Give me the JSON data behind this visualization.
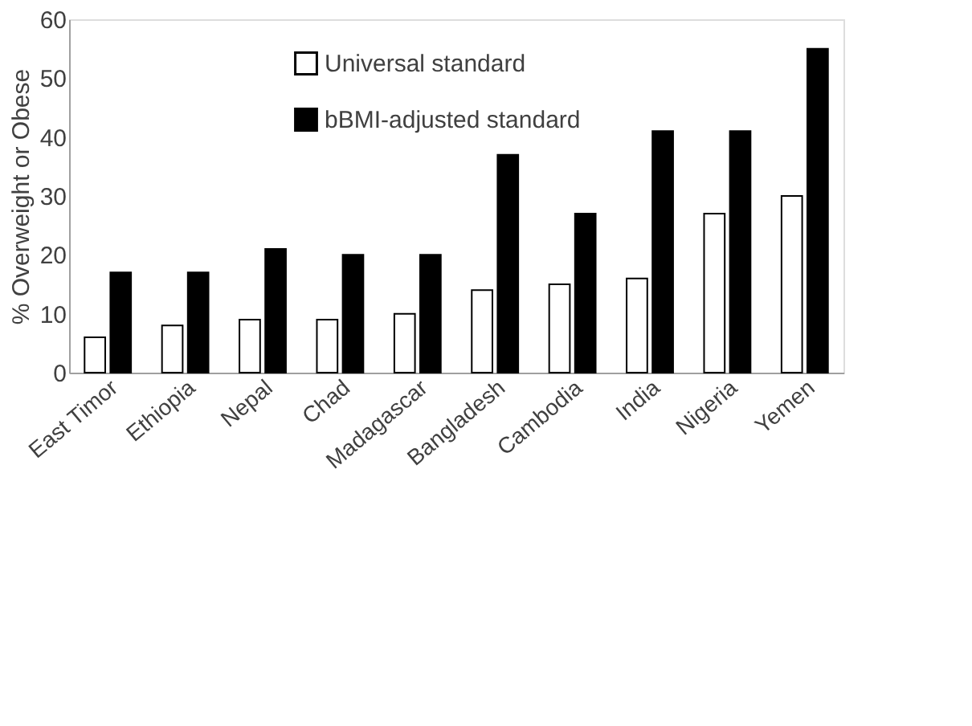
{
  "chart_data": {
    "type": "bar",
    "ylabel": "% Overweight or Obese",
    "categories": [
      "East Timor",
      "Ethiopia",
      "Nepal",
      "Chad",
      "Madagascar",
      "Bangladesh",
      "Cambodia",
      "India",
      "Nigeria",
      "Yemen"
    ],
    "series": [
      {
        "name": "Universal standard",
        "color": "#ffffff",
        "values": [
          6,
          8,
          9,
          9,
          10,
          14,
          15,
          16,
          27,
          30
        ]
      },
      {
        "name": "bBMI-adjusted standard",
        "color": "#000000",
        "values": [
          17,
          17,
          21,
          20,
          20,
          37,
          27,
          41,
          41,
          55
        ]
      }
    ],
    "ylim": [
      0,
      60
    ],
    "yticks": [
      0,
      10,
      20,
      30,
      40,
      50,
      60
    ],
    "grid": false,
    "legend": "top"
  }
}
